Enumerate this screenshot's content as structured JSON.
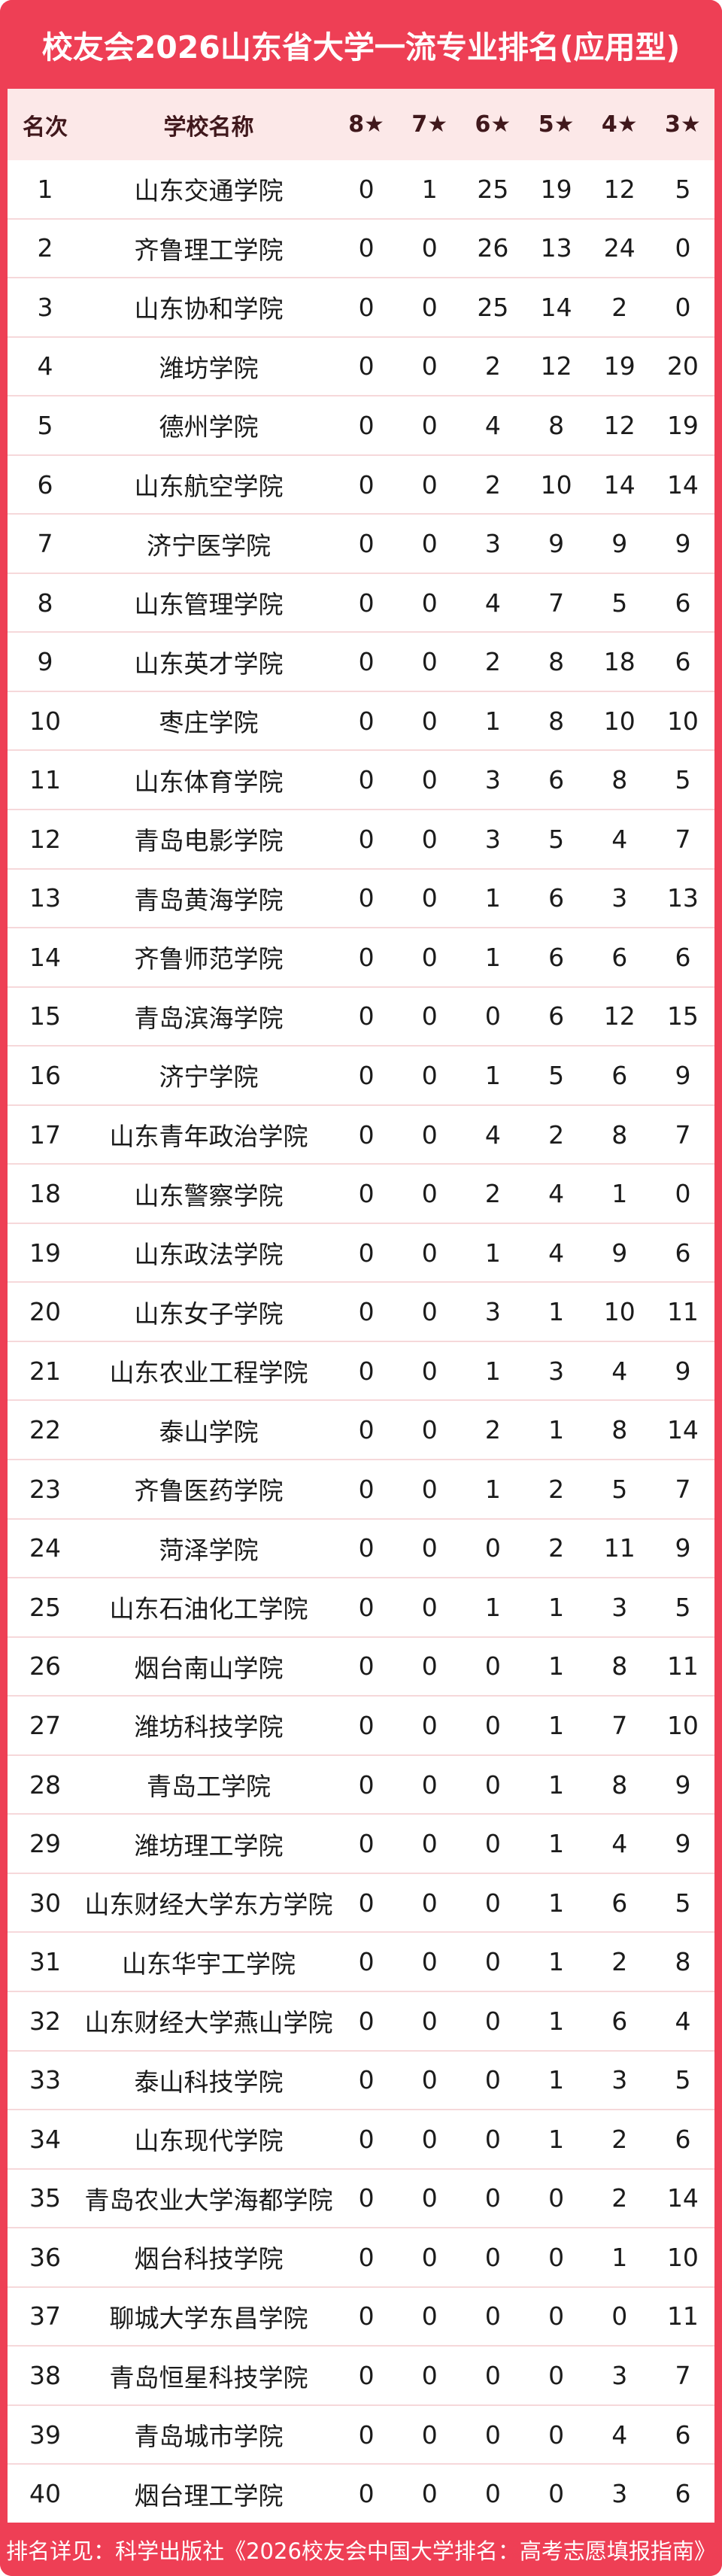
{
  "title": "校友会2026山东省大学一流专业排名(应用型)",
  "footer_note": "排名详见：科学出版社《2026校友会中国大学排名：高考志愿填报指南》",
  "colors": {
    "accent_red": "#ee3f55",
    "header_row_bg": "#fce8e8",
    "header_text": "#40181c",
    "body_text": "#1b1b1b",
    "row_divider": "#f6d8da",
    "card_bg": "#ffffff"
  },
  "chart_data": {
    "type": "table",
    "title": "校友会2026山东省大学一流专业排名(应用型)",
    "columns": [
      "名次",
      "学校名称",
      "8★",
      "7★",
      "6★",
      "5★",
      "4★",
      "3★"
    ],
    "rows": [
      [
        1,
        "山东交通学院",
        0,
        1,
        25,
        19,
        12,
        5
      ],
      [
        2,
        "齐鲁理工学院",
        0,
        0,
        26,
        13,
        24,
        0
      ],
      [
        3,
        "山东协和学院",
        0,
        0,
        25,
        14,
        2,
        0
      ],
      [
        4,
        "潍坊学院",
        0,
        0,
        2,
        12,
        19,
        20
      ],
      [
        5,
        "德州学院",
        0,
        0,
        4,
        8,
        12,
        19
      ],
      [
        6,
        "山东航空学院",
        0,
        0,
        2,
        10,
        14,
        14
      ],
      [
        7,
        "济宁医学院",
        0,
        0,
        3,
        9,
        9,
        9
      ],
      [
        8,
        "山东管理学院",
        0,
        0,
        4,
        7,
        5,
        6
      ],
      [
        9,
        "山东英才学院",
        0,
        0,
        2,
        8,
        18,
        6
      ],
      [
        10,
        "枣庄学院",
        0,
        0,
        1,
        8,
        10,
        10
      ],
      [
        11,
        "山东体育学院",
        0,
        0,
        3,
        6,
        8,
        5
      ],
      [
        12,
        "青岛电影学院",
        0,
        0,
        3,
        5,
        4,
        7
      ],
      [
        13,
        "青岛黄海学院",
        0,
        0,
        1,
        6,
        3,
        13
      ],
      [
        14,
        "齐鲁师范学院",
        0,
        0,
        1,
        6,
        6,
        6
      ],
      [
        15,
        "青岛滨海学院",
        0,
        0,
        0,
        6,
        12,
        15
      ],
      [
        16,
        "济宁学院",
        0,
        0,
        1,
        5,
        6,
        9
      ],
      [
        17,
        "山东青年政治学院",
        0,
        0,
        4,
        2,
        8,
        7
      ],
      [
        18,
        "山东警察学院",
        0,
        0,
        2,
        4,
        1,
        0
      ],
      [
        19,
        "山东政法学院",
        0,
        0,
        1,
        4,
        9,
        6
      ],
      [
        20,
        "山东女子学院",
        0,
        0,
        3,
        1,
        10,
        11
      ],
      [
        21,
        "山东农业工程学院",
        0,
        0,
        1,
        3,
        4,
        9
      ],
      [
        22,
        "泰山学院",
        0,
        0,
        2,
        1,
        8,
        14
      ],
      [
        23,
        "齐鲁医药学院",
        0,
        0,
        1,
        2,
        5,
        7
      ],
      [
        24,
        "菏泽学院",
        0,
        0,
        0,
        2,
        11,
        9
      ],
      [
        25,
        "山东石油化工学院",
        0,
        0,
        1,
        1,
        3,
        5
      ],
      [
        26,
        "烟台南山学院",
        0,
        0,
        0,
        1,
        8,
        11
      ],
      [
        27,
        "潍坊科技学院",
        0,
        0,
        0,
        1,
        7,
        10
      ],
      [
        28,
        "青岛工学院",
        0,
        0,
        0,
        1,
        8,
        9
      ],
      [
        29,
        "潍坊理工学院",
        0,
        0,
        0,
        1,
        4,
        9
      ],
      [
        30,
        "山东财经大学东方学院",
        0,
        0,
        0,
        1,
        6,
        5
      ],
      [
        31,
        "山东华宇工学院",
        0,
        0,
        0,
        1,
        2,
        8
      ],
      [
        32,
        "山东财经大学燕山学院",
        0,
        0,
        0,
        1,
        6,
        4
      ],
      [
        33,
        "泰山科技学院",
        0,
        0,
        0,
        1,
        3,
        5
      ],
      [
        34,
        "山东现代学院",
        0,
        0,
        0,
        1,
        2,
        6
      ],
      [
        35,
        "青岛农业大学海都学院",
        0,
        0,
        0,
        0,
        2,
        14
      ],
      [
        36,
        "烟台科技学院",
        0,
        0,
        0,
        0,
        1,
        10
      ],
      [
        37,
        "聊城大学东昌学院",
        0,
        0,
        0,
        0,
        0,
        11
      ],
      [
        38,
        "青岛恒星科技学院",
        0,
        0,
        0,
        0,
        3,
        7
      ],
      [
        39,
        "青岛城市学院",
        0,
        0,
        0,
        0,
        4,
        6
      ],
      [
        40,
        "烟台理工学院",
        0,
        0,
        0,
        0,
        3,
        6
      ]
    ]
  }
}
